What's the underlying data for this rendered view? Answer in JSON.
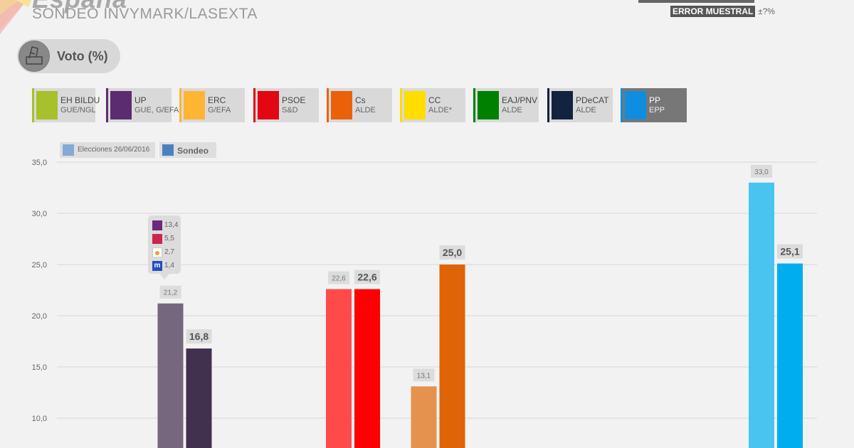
{
  "header": {
    "title": "España",
    "subtitle": "SONDEO INVYMARK/LASEXTA",
    "error_label": "ERROR MUESTRAL",
    "error_value": "±?%"
  },
  "section": {
    "label": "Voto (%)",
    "icon": "ballot-box-icon"
  },
  "parties": [
    {
      "name": "EH BILDU",
      "group": "GUE/NGL",
      "color": "#a6c12b",
      "icon": "eh-bildu-logo-icon"
    },
    {
      "name": "UP",
      "group": "GUE, G/EFA",
      "color": "#5b2c6f",
      "icon": "up-heart-logo-icon"
    },
    {
      "name": "ERC",
      "group": "G/EFA",
      "color": "#ffb534",
      "icon": "erc-logo-icon"
    },
    {
      "name": "PSOE",
      "group": "S&D",
      "color": "#e30613",
      "icon": "psoe-fist-rose-logo-icon"
    },
    {
      "name": "Cs",
      "group": "ALDE",
      "color": "#eb6109",
      "icon": "cs-logo-icon"
    },
    {
      "name": "CC",
      "group": "ALDE*",
      "color": "#ffdd00",
      "icon": "cc-logo-icon"
    },
    {
      "name": "EAJ/PNV",
      "group": "ALDE",
      "color": "#008000",
      "icon": "eaj-pnv-logo-icon"
    },
    {
      "name": "PDeCAT",
      "group": "ALDE",
      "color": "#12233f",
      "icon": "pdecat-logo-icon"
    },
    {
      "name": "PP",
      "group": "EPP",
      "color": "#0f8ee0",
      "icon": "pp-logo-icon"
    }
  ],
  "legend": [
    {
      "label": "Elecciones 26/06/2016",
      "color": "#86a9d6"
    },
    {
      "label": "Sondeo",
      "color": "#4b7fc2"
    }
  ],
  "tooltip": {
    "items": [
      {
        "value": "13,4",
        "icon": "podemos-logo-icon",
        "color": "#6b2a7a"
      },
      {
        "value": "5,5",
        "icon": "en-comu-logo-icon",
        "color": "#c8264f"
      },
      {
        "value": "2,7",
        "icon": "compromis-logo-icon",
        "color": "#f0a030"
      },
      {
        "value": "1,4",
        "icon": "en-marea-logo-icon",
        "color": "#1f4fbf"
      }
    ]
  },
  "chart_data": {
    "type": "bar",
    "ylim": [
      8.5,
      35
    ],
    "yticks": [
      "35,0",
      "30,0",
      "25,0",
      "20,0",
      "15,0",
      "10,0"
    ],
    "ytick_values": [
      35,
      30,
      25,
      20,
      15,
      10
    ],
    "categories": [
      "EH BILDU",
      "UP",
      "ERC",
      "PSOE",
      "Cs",
      "CC",
      "EAJ/PNV",
      "PDeCAT",
      "PP"
    ],
    "series": [
      {
        "name": "Elecciones 26/06/2016",
        "values": [
          null,
          21.2,
          null,
          22.6,
          13.1,
          null,
          null,
          null,
          33.0
        ],
        "labels": [
          null,
          "21,2",
          null,
          "22,6",
          "13,1",
          null,
          null,
          null,
          "33,0"
        ]
      },
      {
        "name": "Sondeo",
        "values": [
          null,
          16.8,
          null,
          22.6,
          25.0,
          null,
          null,
          null,
          25.1
        ],
        "labels": [
          null,
          "16,8",
          null,
          "22,6",
          "25,0",
          null,
          null,
          null,
          "25,1"
        ]
      }
    ],
    "bar_colors": [
      [
        null,
        "#75677e",
        null,
        "#ff4a4a",
        "#e4924e",
        null,
        null,
        null,
        "#49c3f0"
      ],
      [
        null,
        "#42304f",
        null,
        "#fe0000",
        "#df6307",
        null,
        null,
        null,
        "#00aeef"
      ]
    ]
  }
}
